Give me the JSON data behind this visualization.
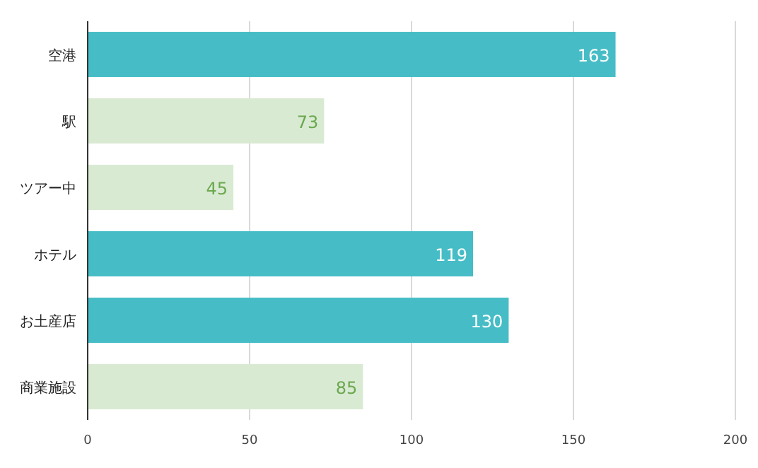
{
  "chart_data": {
    "type": "bar",
    "orientation": "horizontal",
    "categories": [
      "空港",
      "駅",
      "ツアー中",
      "ホテル",
      "お土産店",
      "商業施設"
    ],
    "values": [
      163,
      73,
      45,
      119,
      130,
      85
    ],
    "colors": [
      "#46bdc6",
      "#d9ead3",
      "#d9ead3",
      "#46bdc6",
      "#46bdc6",
      "#d9ead3"
    ],
    "xlim": [
      0,
      200
    ],
    "xticks": [
      0,
      50,
      100,
      150,
      200
    ],
    "grid": "x",
    "data_labels": true
  }
}
